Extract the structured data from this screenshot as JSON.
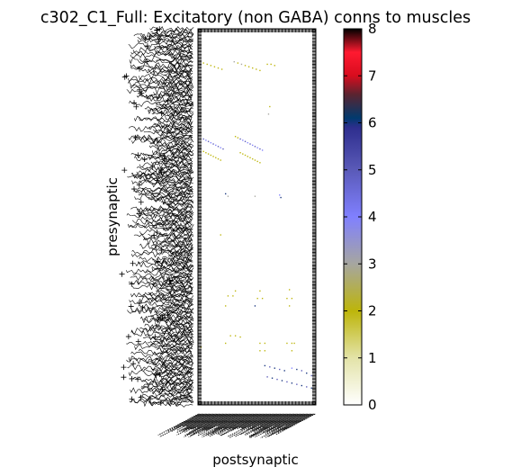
{
  "chart_data": {
    "type": "heatmap",
    "title": "c302_C1_Full: Excitatory (non GABA) conns to muscles",
    "xlabel": "postsynaptic",
    "ylabel": "presynaptic",
    "colorbar": {
      "min": 0,
      "max": 8,
      "ticks": [
        "0",
        "1",
        "2",
        "3",
        "4",
        "5",
        "6",
        "7",
        "8"
      ],
      "colormap": "gist_stern_r",
      "stops": [
        {
          "v": 0,
          "c": "#ffffff"
        },
        {
          "v": 1,
          "c": "#e3e3a8"
        },
        {
          "v": 2,
          "c": "#bdb50a"
        },
        {
          "v": 3,
          "c": "#a6a6a0"
        },
        {
          "v": 4,
          "c": "#8080ff"
        },
        {
          "v": 5,
          "c": "#5a5ab8"
        },
        {
          "v": 5.9,
          "c": "#2e2e8e"
        },
        {
          "v": 6.1,
          "c": "#003a6e"
        },
        {
          "v": 6.6,
          "c": "#5a2430"
        },
        {
          "v": 7,
          "c": "#d80c1e"
        },
        {
          "v": 7.5,
          "c": "#ff1a30"
        },
        {
          "v": 8,
          "c": "#000000"
        }
      ]
    },
    "n_pre": 302,
    "n_post": 96,
    "x_ticklabels_legible": false,
    "y_ticklabels_legible": false,
    "cells": [
      {
        "x": 4,
        "y": 27,
        "v": 2
      },
      {
        "x": 7,
        "y": 28,
        "v": 2
      },
      {
        "x": 10,
        "y": 29,
        "v": 2
      },
      {
        "x": 13,
        "y": 30,
        "v": 2
      },
      {
        "x": 16,
        "y": 31,
        "v": 2
      },
      {
        "x": 19,
        "y": 32,
        "v": 2
      },
      {
        "x": 29,
        "y": 26,
        "v": 3
      },
      {
        "x": 32,
        "y": 27,
        "v": 2
      },
      {
        "x": 35,
        "y": 28,
        "v": 3
      },
      {
        "x": 38,
        "y": 29,
        "v": 2
      },
      {
        "x": 41,
        "y": 30,
        "v": 2
      },
      {
        "x": 44,
        "y": 31,
        "v": 2
      },
      {
        "x": 47,
        "y": 32,
        "v": 2
      },
      {
        "x": 50,
        "y": 33,
        "v": 2
      },
      {
        "x": 56,
        "y": 28,
        "v": 2
      },
      {
        "x": 59,
        "y": 28,
        "v": 2
      },
      {
        "x": 62,
        "y": 29,
        "v": 2
      },
      {
        "x": 58,
        "y": 62,
        "v": 2
      },
      {
        "x": 57,
        "y": 68,
        "v": 3
      },
      {
        "x": 4,
        "y": 88,
        "v": 5
      },
      {
        "x": 6,
        "y": 89,
        "v": 4
      },
      {
        "x": 8,
        "y": 90,
        "v": 5
      },
      {
        "x": 10,
        "y": 91,
        "v": 4
      },
      {
        "x": 12,
        "y": 92,
        "v": 5
      },
      {
        "x": 14,
        "y": 93,
        "v": 4
      },
      {
        "x": 16,
        "y": 94,
        "v": 5
      },
      {
        "x": 18,
        "y": 95,
        "v": 4
      },
      {
        "x": 20,
        "y": 96,
        "v": 5
      },
      {
        "x": 30,
        "y": 86,
        "v": 2
      },
      {
        "x": 32,
        "y": 87,
        "v": 2
      },
      {
        "x": 34,
        "y": 88,
        "v": 5
      },
      {
        "x": 36,
        "y": 89,
        "v": 4
      },
      {
        "x": 38,
        "y": 90,
        "v": 5
      },
      {
        "x": 40,
        "y": 91,
        "v": 4
      },
      {
        "x": 42,
        "y": 92,
        "v": 5
      },
      {
        "x": 44,
        "y": 93,
        "v": 4
      },
      {
        "x": 46,
        "y": 94,
        "v": 5
      },
      {
        "x": 48,
        "y": 95,
        "v": 4
      },
      {
        "x": 50,
        "y": 96,
        "v": 5
      },
      {
        "x": 52,
        "y": 97,
        "v": 4
      },
      {
        "x": 4,
        "y": 98,
        "v": 2
      },
      {
        "x": 6,
        "y": 99,
        "v": 2
      },
      {
        "x": 8,
        "y": 100,
        "v": 2
      },
      {
        "x": 10,
        "y": 101,
        "v": 2
      },
      {
        "x": 12,
        "y": 102,
        "v": 2
      },
      {
        "x": 14,
        "y": 103,
        "v": 2
      },
      {
        "x": 16,
        "y": 104,
        "v": 2
      },
      {
        "x": 18,
        "y": 105,
        "v": 2
      },
      {
        "x": 34,
        "y": 99,
        "v": 2
      },
      {
        "x": 36,
        "y": 100,
        "v": 2
      },
      {
        "x": 38,
        "y": 101,
        "v": 2
      },
      {
        "x": 40,
        "y": 102,
        "v": 2
      },
      {
        "x": 42,
        "y": 103,
        "v": 2
      },
      {
        "x": 44,
        "y": 104,
        "v": 2
      },
      {
        "x": 46,
        "y": 105,
        "v": 2
      },
      {
        "x": 48,
        "y": 106,
        "v": 2
      },
      {
        "x": 50,
        "y": 107,
        "v": 2
      },
      {
        "x": 22,
        "y": 132,
        "v": 6
      },
      {
        "x": 24,
        "y": 134,
        "v": 3
      },
      {
        "x": 46,
        "y": 134,
        "v": 3
      },
      {
        "x": 66,
        "y": 133,
        "v": 4
      },
      {
        "x": 67,
        "y": 135,
        "v": 6
      },
      {
        "x": 18,
        "y": 165,
        "v": 2
      },
      {
        "x": 30,
        "y": 210,
        "v": 2
      },
      {
        "x": 50,
        "y": 210,
        "v": 2
      },
      {
        "x": 74,
        "y": 209,
        "v": 2
      },
      {
        "x": 24,
        "y": 214,
        "v": 2
      },
      {
        "x": 28,
        "y": 214,
        "v": 2
      },
      {
        "x": 48,
        "y": 216,
        "v": 2
      },
      {
        "x": 52,
        "y": 216,
        "v": 2
      },
      {
        "x": 72,
        "y": 216,
        "v": 2
      },
      {
        "x": 76,
        "y": 216,
        "v": 2
      },
      {
        "x": 22,
        "y": 222,
        "v": 2
      },
      {
        "x": 46,
        "y": 222,
        "v": 6
      },
      {
        "x": 74,
        "y": 222,
        "v": 2
      },
      {
        "x": 26,
        "y": 246,
        "v": 2
      },
      {
        "x": 30,
        "y": 246,
        "v": 2
      },
      {
        "x": 34,
        "y": 247,
        "v": 2
      },
      {
        "x": 22,
        "y": 252,
        "v": 2
      },
      {
        "x": 50,
        "y": 252,
        "v": 2
      },
      {
        "x": 54,
        "y": 252,
        "v": 2
      },
      {
        "x": 72,
        "y": 252,
        "v": 2
      },
      {
        "x": 76,
        "y": 252,
        "v": 2
      },
      {
        "x": 78,
        "y": 252,
        "v": 2
      },
      {
        "x": 50,
        "y": 258,
        "v": 2
      },
      {
        "x": 54,
        "y": 258,
        "v": 2
      },
      {
        "x": 76,
        "y": 258,
        "v": 2
      },
      {
        "x": 2,
        "y": 255,
        "v": 2
      },
      {
        "x": 54,
        "y": 270,
        "v": 6
      },
      {
        "x": 58,
        "y": 271,
        "v": 5
      },
      {
        "x": 62,
        "y": 272,
        "v": 6
      },
      {
        "x": 66,
        "y": 273,
        "v": 5
      },
      {
        "x": 70,
        "y": 274,
        "v": 6
      },
      {
        "x": 76,
        "y": 272,
        "v": 4
      },
      {
        "x": 80,
        "y": 273,
        "v": 6
      },
      {
        "x": 84,
        "y": 274,
        "v": 5
      },
      {
        "x": 88,
        "y": 276,
        "v": 6
      },
      {
        "x": 92,
        "y": 278,
        "v": 5
      },
      {
        "x": 56,
        "y": 279,
        "v": 5
      },
      {
        "x": 60,
        "y": 280,
        "v": 6
      },
      {
        "x": 64,
        "y": 281,
        "v": 5
      },
      {
        "x": 68,
        "y": 282,
        "v": 6
      },
      {
        "x": 72,
        "y": 283,
        "v": 5
      },
      {
        "x": 76,
        "y": 284,
        "v": 6
      },
      {
        "x": 80,
        "y": 285,
        "v": 5
      },
      {
        "x": 84,
        "y": 286,
        "v": 6
      },
      {
        "x": 88,
        "y": 287,
        "v": 5
      },
      {
        "x": 92,
        "y": 288,
        "v": 6
      }
    ]
  }
}
